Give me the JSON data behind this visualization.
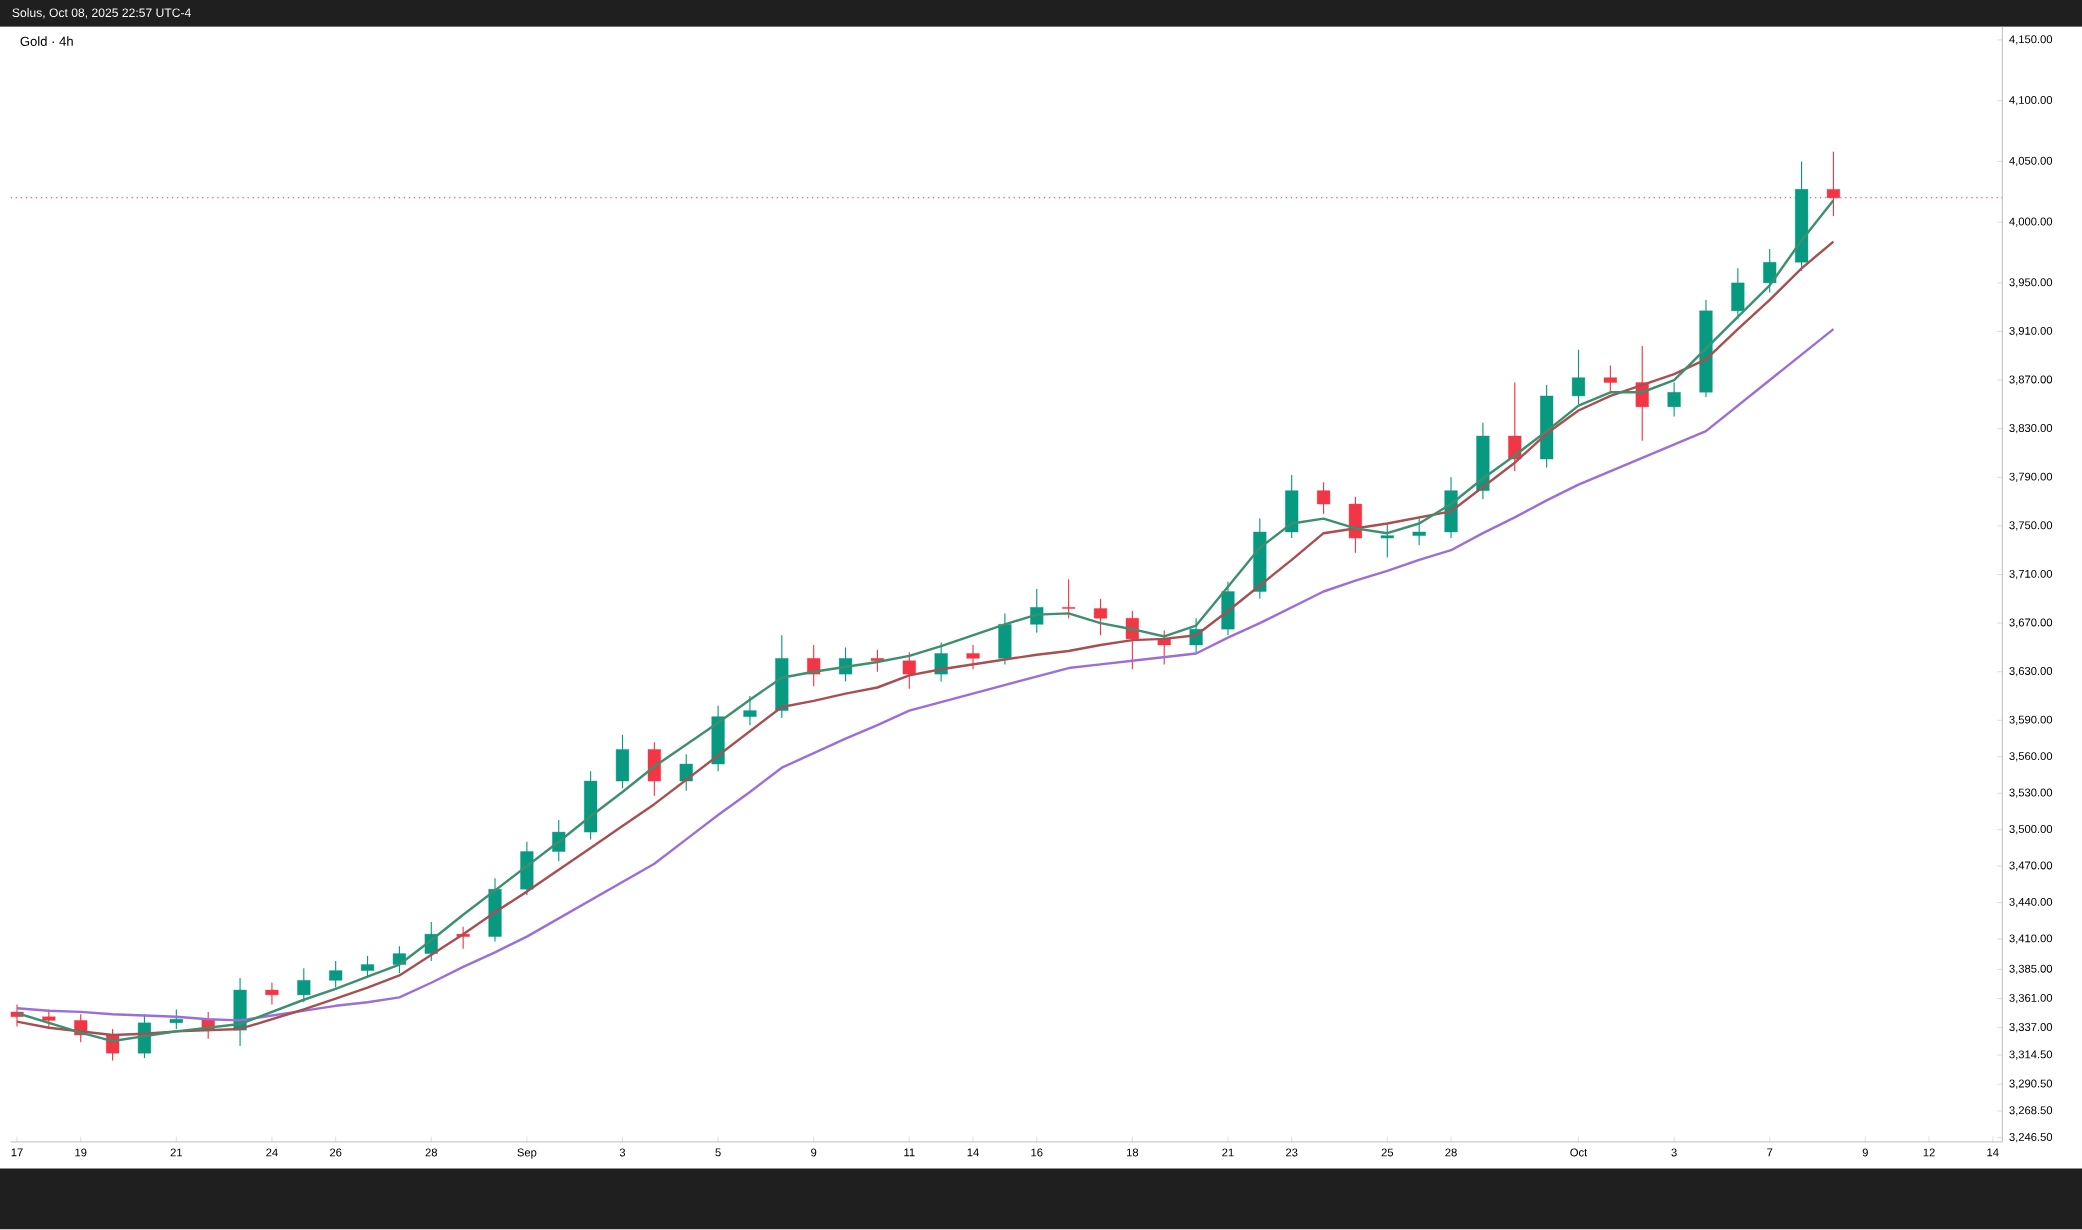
{
  "chart_data": {
    "type": "candlestick",
    "title": "Gold · 4h",
    "annotations": [
      "Solus, Oct 08, 2025 22:57 UTC-4"
    ],
    "categories": [
      "17",
      null,
      "19",
      null,
      null,
      "21",
      null,
      null,
      "24",
      null,
      "26",
      null,
      null,
      "28",
      null,
      null,
      "Sep",
      null,
      null,
      "3",
      null,
      null,
      "5",
      null,
      null,
      "9",
      null,
      null,
      "11",
      null,
      "14",
      null,
      "16",
      null,
      null,
      "18",
      null,
      null,
      "21",
      null,
      "23",
      null,
      null,
      "25",
      null,
      "28",
      null,
      null,
      null,
      "Oct",
      null,
      null,
      "3",
      null,
      null,
      "7",
      null,
      null,
      "9",
      null,
      "12",
      null,
      "14"
    ],
    "ohlc": [
      [
        3350,
        3356,
        3338,
        3346
      ],
      [
        3346,
        3352,
        3336,
        3343
      ],
      [
        3343,
        3348,
        3325,
        3331
      ],
      [
        3331,
        3336,
        3310,
        3316
      ],
      [
        3316,
        3348,
        3312,
        3341
      ],
      [
        3341,
        3352,
        3336,
        3344
      ],
      [
        3344,
        3350,
        3328,
        3335
      ],
      [
        3335,
        3378,
        3322,
        3368
      ],
      [
        3368,
        3374,
        3356,
        3364
      ],
      [
        3364,
        3386,
        3358,
        3376
      ],
      [
        3376,
        3392,
        3370,
        3384
      ],
      [
        3384,
        3396,
        3378,
        3389
      ],
      [
        3389,
        3404,
        3382,
        3398
      ],
      [
        3398,
        3424,
        3392,
        3414
      ],
      [
        3414,
        3420,
        3402,
        3412
      ],
      [
        3412,
        3460,
        3408,
        3451
      ],
      [
        3451,
        3490,
        3446,
        3482
      ],
      [
        3482,
        3508,
        3474,
        3498
      ],
      [
        3498,
        3548,
        3492,
        3540
      ],
      [
        3540,
        3578,
        3534,
        3566
      ],
      [
        3566,
        3572,
        3528,
        3540
      ],
      [
        3540,
        3562,
        3532,
        3554
      ],
      [
        3554,
        3602,
        3548,
        3593
      ],
      [
        3593,
        3610,
        3586,
        3598
      ],
      [
        3598,
        3660,
        3592,
        3641
      ],
      [
        3641,
        3652,
        3618,
        3628
      ],
      [
        3628,
        3650,
        3622,
        3641
      ],
      [
        3641,
        3648,
        3630,
        3639
      ],
      [
        3639,
        3646,
        3616,
        3628
      ],
      [
        3628,
        3654,
        3622,
        3645
      ],
      [
        3645,
        3652,
        3632,
        3641
      ],
      [
        3641,
        3678,
        3636,
        3669
      ],
      [
        3669,
        3698,
        3662,
        3683
      ],
      [
        3683,
        3706,
        3674,
        3682
      ],
      [
        3682,
        3690,
        3660,
        3674
      ],
      [
        3674,
        3680,
        3632,
        3657
      ],
      [
        3657,
        3664,
        3636,
        3652
      ],
      [
        3652,
        3674,
        3646,
        3665
      ],
      [
        3665,
        3704,
        3660,
        3696
      ],
      [
        3696,
        3756,
        3690,
        3745
      ],
      [
        3745,
        3792,
        3740,
        3779
      ],
      [
        3779,
        3786,
        3760,
        3768
      ],
      [
        3768,
        3774,
        3728,
        3740
      ],
      [
        3740,
        3752,
        3724,
        3742
      ],
      [
        3742,
        3756,
        3734,
        3745
      ],
      [
        3745,
        3790,
        3740,
        3779
      ],
      [
        3779,
        3835,
        3772,
        3824
      ],
      [
        3824,
        3868,
        3795,
        3805
      ],
      [
        3805,
        3866,
        3798,
        3857
      ],
      [
        3857,
        3895,
        3850,
        3872
      ],
      [
        3872,
        3882,
        3860,
        3868
      ],
      [
        3868,
        3898,
        3820,
        3848
      ],
      [
        3848,
        3868,
        3840,
        3860
      ],
      [
        3860,
        3936,
        3856,
        3927
      ],
      [
        3927,
        3962,
        3920,
        3950
      ],
      [
        3950,
        3978,
        3942,
        3967
      ],
      [
        3967,
        4050,
        3960,
        4027
      ],
      [
        4027,
        4058,
        4005,
        4020
      ],
      null,
      null,
      null,
      null,
      null
    ],
    "colors": [
      "#f23645",
      "#f23645",
      "#f23645",
      "#f23645",
      "#089981",
      "#089981",
      "#f23645",
      "#089981",
      "#f23645",
      "#089981",
      "#089981",
      "#089981",
      "#089981",
      "#089981",
      "#f23645",
      "#089981",
      "#089981",
      "#089981",
      "#089981",
      "#089981",
      "#f23645",
      "#089981",
      "#089981",
      "#089981",
      "#089981",
      "#f23645",
      "#089981",
      "#f23645",
      "#f23645",
      "#089981",
      "#f23645",
      "#089981",
      "#089981",
      "#f23645",
      "#f23645",
      "#f23645",
      "#f23645",
      "#089981",
      "#089981",
      "#089981",
      "#089981",
      "#f23645",
      "#f23645",
      "#089981",
      "#089981",
      "#089981",
      "#089981",
      "#f23645",
      "#089981",
      "#089981",
      "#f23645",
      "#f23645",
      "#089981",
      "#089981",
      "#089981",
      "#089981",
      "#089981",
      "#f23645",
      null,
      null,
      null,
      null,
      null
    ],
    "series": [
      {
        "type": "line",
        "color": "#9b6fd8",
        "line_style": "solid",
        "values": [
          3353,
          3351,
          3350,
          3348,
          3347,
          3346,
          3344,
          3343,
          3347,
          3351,
          3355,
          3358,
          3362,
          3374,
          3387,
          3399,
          3412,
          3427,
          3442,
          3457,
          3472,
          3492,
          3512,
          3531,
          3551,
          3563,
          3575,
          3586,
          3598,
          3605,
          3612,
          3619,
          3626,
          3633,
          3636,
          3639,
          3642,
          3645,
          3658,
          3670,
          3683,
          3696,
          3705,
          3713,
          3722,
          3730,
          3744,
          3757,
          3771,
          3784,
          3795,
          3806,
          3817,
          3828,
          3849,
          3870,
          3891,
          3912,
          null,
          null,
          null,
          null,
          null
        ]
      },
      {
        "type": "line",
        "color": "#a84f52",
        "line_style": "solid",
        "values": [
          3342,
          3337,
          3334,
          3331,
          3332,
          3334,
          3335,
          3336,
          3344,
          3352,
          3361,
          3370,
          3380,
          3397,
          3414,
          3432,
          3449,
          3467,
          3485,
          3503,
          3521,
          3541,
          3561,
          3581,
          3601,
          3606,
          3612,
          3617,
          3627,
          3632,
          3636,
          3640,
          3644,
          3647,
          3652,
          3656,
          3657,
          3660,
          3680,
          3701,
          3722,
          3744,
          3748,
          3752,
          3757,
          3762,
          3782,
          3802,
          3826,
          3845,
          3857,
          3866,
          3875,
          3887,
          3912,
          3936,
          3962,
          3984,
          null,
          null,
          null,
          null,
          null
        ]
      },
      {
        "type": "line",
        "color": "#3d8f6f",
        "line_style": "solid",
        "values": [
          3349,
          3341,
          3333,
          3326,
          3330,
          3334,
          3337,
          3340,
          3350,
          3360,
          3369,
          3379,
          3389,
          3409,
          3430,
          3450,
          3470,
          3490,
          3511,
          3531,
          3552,
          3570,
          3588,
          3607,
          3625,
          3630,
          3634,
          3638,
          3643,
          3651,
          3660,
          3669,
          3677,
          3678,
          3670,
          3665,
          3659,
          3668,
          3700,
          3732,
          3752,
          3756,
          3748,
          3744,
          3752,
          3768,
          3789,
          3808,
          3828,
          3849,
          3860,
          3860,
          3870,
          3896,
          3922,
          3948,
          3985,
          4018,
          null,
          null,
          null,
          null,
          null
        ]
      }
    ],
    "ylim": [
      3243,
      4161
    ],
    "yticks": [
      {
        "value": 4150,
        "label": "4,150.00"
      },
      {
        "value": 4100,
        "label": "4,100.00"
      },
      {
        "value": 4050,
        "label": "4,050.00"
      },
      {
        "value": 4000,
        "label": "4,000.00"
      },
      {
        "value": 3950,
        "label": "3,950.00"
      },
      {
        "value": 3910,
        "label": "3,910.00"
      },
      {
        "value": 3870,
        "label": "3,870.00"
      },
      {
        "value": 3830,
        "label": "3,830.00"
      },
      {
        "value": 3790,
        "label": "3,790.00"
      },
      {
        "value": 3750,
        "label": "3,750.00"
      },
      {
        "value": 3710,
        "label": "3,710.00"
      },
      {
        "value": 3670,
        "label": "3,670.00"
      },
      {
        "value": 3630,
        "label": "3,630.00"
      },
      {
        "value": 3590,
        "label": "3,590.00"
      },
      {
        "value": 3560,
        "label": "3,560.00"
      },
      {
        "value": 3530,
        "label": "3,530.00"
      },
      {
        "value": 3500,
        "label": "3,500.00"
      },
      {
        "value": 3470,
        "label": "3,470.00"
      },
      {
        "value": 3440,
        "label": "3,440.00"
      },
      {
        "value": 3410,
        "label": "3,410.00"
      },
      {
        "value": 3385,
        "label": "3,385.00"
      },
      {
        "value": 3361,
        "label": "3,361.00"
      },
      {
        "value": 3337,
        "label": "3,337.00"
      },
      {
        "value": 3314.5,
        "label": "3,314.50"
      },
      {
        "value": 3290.5,
        "label": "3,290.50"
      },
      {
        "value": 3268.5,
        "label": "3,268.50"
      },
      {
        "value": 3246.5,
        "label": "3,246.50"
      }
    ],
    "ref_lines": [
      {
        "axis": "y",
        "value": 4020,
        "color": "#f23645",
        "line_style": "dotted"
      }
    ]
  }
}
